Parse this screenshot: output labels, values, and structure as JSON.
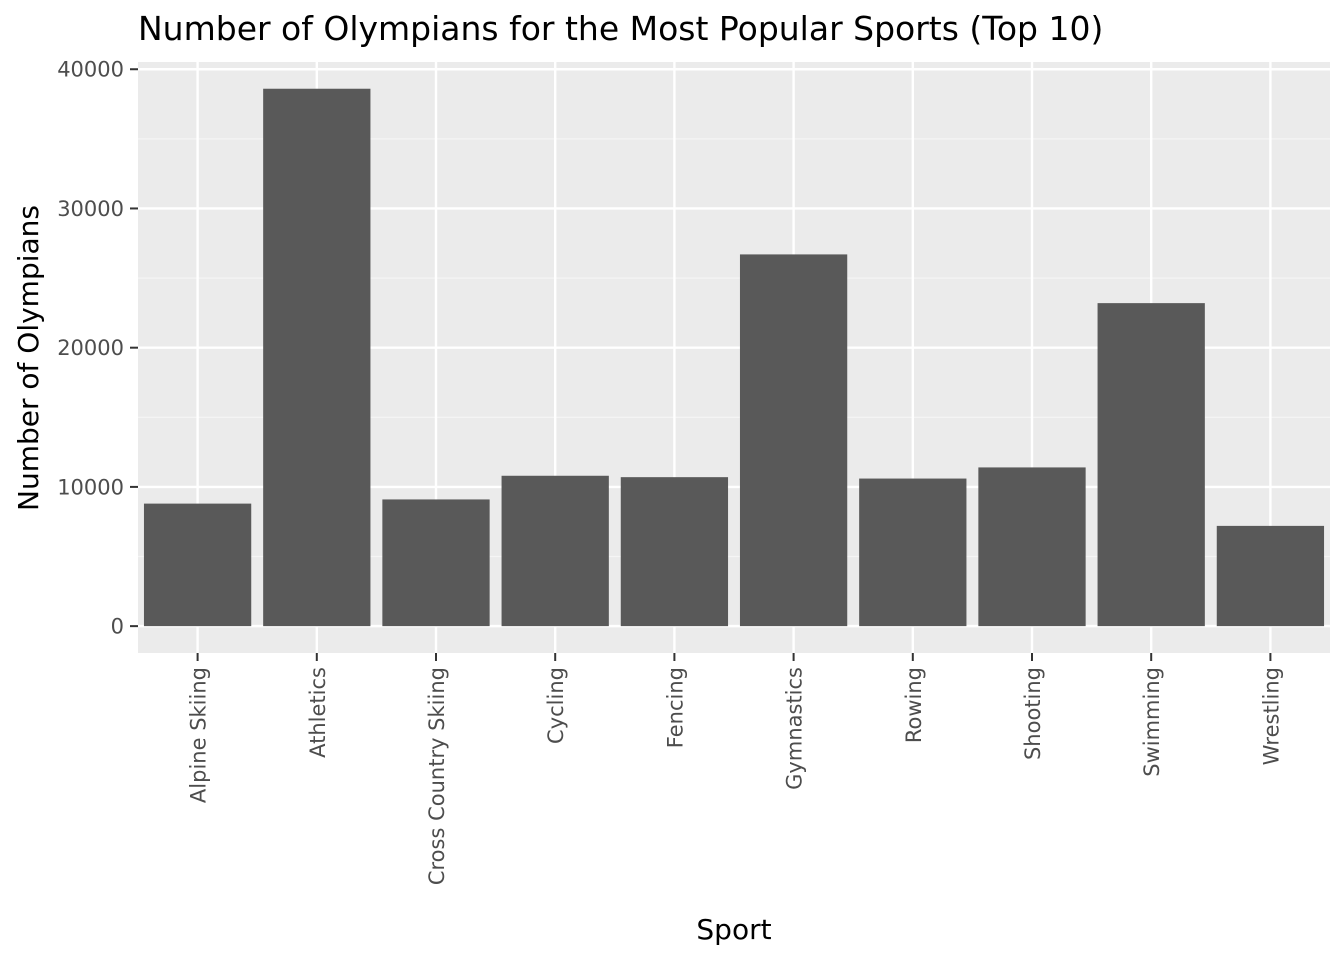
{
  "chart_data": {
    "type": "bar",
    "title": "Number of Olympians for the Most Popular Sports (Top 10)",
    "xlabel": "Sport",
    "ylabel": "Number of Olympians",
    "categories": [
      "Alpine Skiing",
      "Athletics",
      "Cross Country Skiing",
      "Cycling",
      "Fencing",
      "Gymnastics",
      "Rowing",
      "Shooting",
      "Swimming",
      "Wrestling"
    ],
    "values": [
      8800,
      38600,
      9100,
      10800,
      10700,
      26700,
      10600,
      11400,
      23200,
      7200
    ],
    "yticks": [
      0,
      10000,
      20000,
      30000,
      40000
    ],
    "ytick_labels": [
      "0",
      "10000",
      "20000",
      "30000",
      "40000"
    ],
    "ylim": [
      -1930,
      40520
    ],
    "grid": true,
    "colors": {
      "bar": "#595959",
      "panel": "#ebebeb",
      "grid_major": "#ffffff",
      "grid_minor": "#f5f5f5",
      "tick": "#333333"
    }
  }
}
